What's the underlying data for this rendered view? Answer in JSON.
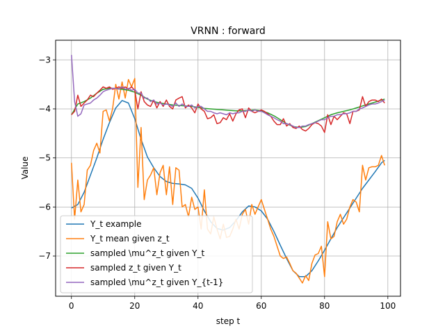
{
  "chart_data": {
    "type": "line",
    "title": "VRNN : forward",
    "xlabel": "step t",
    "ylabel": "Value",
    "xlim": [
      -5,
      104
    ],
    "ylim": [
      -7.82,
      -2.6
    ],
    "xticks": [
      0,
      20,
      40,
      60,
      80,
      100
    ],
    "yticks": [
      -7,
      -6,
      -5,
      -4,
      -3
    ],
    "ytick_labels": [
      "−7",
      "−6",
      "−5",
      "−4",
      "−3"
    ],
    "grid": true,
    "legend_position": "lower-left",
    "series": [
      {
        "name": "Y_t example",
        "color": "#1f77b4",
        "x": [
          0,
          2,
          4,
          6,
          8,
          10,
          12,
          14,
          16,
          18,
          20,
          22,
          24,
          26,
          28,
          30,
          32,
          34,
          36,
          38,
          40,
          42,
          44,
          46,
          48,
          50,
          52,
          54,
          56,
          58,
          60,
          62,
          64,
          66,
          68,
          70,
          72,
          74,
          76,
          78,
          80,
          82,
          84,
          86,
          88,
          90,
          92,
          94,
          96,
          98,
          99
        ],
        "y": [
          -6.02,
          -5.95,
          -5.7,
          -5.35,
          -5.0,
          -4.62,
          -4.28,
          -3.98,
          -3.83,
          -3.88,
          -4.2,
          -4.62,
          -4.98,
          -5.2,
          -5.38,
          -5.48,
          -5.52,
          -5.53,
          -5.55,
          -5.62,
          -5.82,
          -6.08,
          -6.3,
          -6.44,
          -6.47,
          -6.42,
          -6.28,
          -6.1,
          -5.98,
          -6.0,
          -6.08,
          -6.25,
          -6.5,
          -6.78,
          -7.05,
          -7.3,
          -7.42,
          -7.42,
          -7.3,
          -7.1,
          -6.88,
          -6.65,
          -6.42,
          -6.22,
          -6.02,
          -5.82,
          -5.62,
          -5.45,
          -5.28,
          -5.1,
          -5.05
        ]
      },
      {
        "name": "Y_t mean given z_t",
        "color": "#ff7f0e",
        "x": [
          0,
          1,
          2,
          3,
          4,
          5,
          6,
          7,
          8,
          9,
          10,
          11,
          12,
          13,
          14,
          15,
          16,
          17,
          18,
          19,
          20,
          21,
          22,
          23,
          24,
          25,
          26,
          27,
          28,
          29,
          30,
          31,
          32,
          33,
          34,
          35,
          36,
          37,
          38,
          39,
          40,
          41,
          42,
          43,
          44,
          45,
          46,
          47,
          48,
          49,
          50,
          51,
          52,
          53,
          54,
          55,
          56,
          57,
          58,
          59,
          60,
          61,
          62,
          63,
          64,
          65,
          66,
          67,
          68,
          69,
          70,
          71,
          72,
          73,
          74,
          75,
          76,
          77,
          78,
          79,
          80,
          81,
          82,
          83,
          84,
          85,
          86,
          87,
          88,
          89,
          90,
          91,
          92,
          93,
          94,
          95,
          96,
          97,
          98,
          99
        ],
        "y": [
          -5.1,
          -6.25,
          -5.45,
          -6.1,
          -5.95,
          -5.25,
          -5.15,
          -4.85,
          -4.7,
          -4.9,
          -4.05,
          -4.02,
          -4.25,
          -4.0,
          -3.5,
          -3.8,
          -3.45,
          -3.78,
          -3.4,
          -3.55,
          -3.38,
          -5.6,
          -4.38,
          -5.85,
          -5.45,
          -5.35,
          -5.2,
          -5.75,
          -5.3,
          -5.15,
          -5.75,
          -5.18,
          -5.95,
          -5.2,
          -5.25,
          -6.0,
          -5.95,
          -6.2,
          -5.8,
          -6.05,
          -6.0,
          -6.45,
          -5.65,
          -6.45,
          -6.55,
          -6.2,
          -6.45,
          -6.65,
          -6.35,
          -6.62,
          -6.6,
          -6.45,
          -6.25,
          -6.45,
          -6.15,
          -6.05,
          -6.35,
          -5.95,
          -6.15,
          -6.0,
          -5.85,
          -6.05,
          -6.25,
          -6.45,
          -6.6,
          -6.8,
          -7.0,
          -7.05,
          -7.02,
          -7.15,
          -7.3,
          -7.35,
          -7.45,
          -7.55,
          -7.4,
          -7.5,
          -7.15,
          -6.98,
          -6.95,
          -6.8,
          -7.42,
          -6.3,
          -6.65,
          -6.6,
          -6.3,
          -6.15,
          -6.35,
          -6.25,
          -6.0,
          -5.85,
          -5.9,
          -6.1,
          -5.15,
          -5.45,
          -5.2,
          -5.18,
          -5.18,
          -5.15,
          -4.95,
          -5.15
        ]
      },
      {
        "name": "sampled \\mu^z_t given Y_t",
        "color": "#2ca02c",
        "x": [
          0,
          2,
          4,
          6,
          8,
          10,
          12,
          14,
          16,
          18,
          20,
          22,
          24,
          26,
          28,
          30,
          32,
          34,
          36,
          38,
          40,
          42,
          44,
          46,
          48,
          50,
          52,
          54,
          56,
          58,
          60,
          62,
          64,
          66,
          68,
          70,
          72,
          74,
          76,
          78,
          80,
          82,
          84,
          86,
          88,
          90,
          92,
          94,
          96,
          98,
          99
        ],
        "y": [
          -4.12,
          -3.9,
          -3.85,
          -3.78,
          -3.68,
          -3.6,
          -3.58,
          -3.58,
          -3.6,
          -3.62,
          -3.66,
          -3.72,
          -3.8,
          -3.85,
          -3.88,
          -3.9,
          -3.92,
          -3.93,
          -3.94,
          -3.95,
          -3.97,
          -3.99,
          -4.0,
          -4.01,
          -4.02,
          -4.03,
          -4.04,
          -4.04,
          -4.03,
          -4.02,
          -4.04,
          -4.08,
          -4.14,
          -4.22,
          -4.3,
          -4.36,
          -4.38,
          -4.36,
          -4.3,
          -4.24,
          -4.18,
          -4.12,
          -4.08,
          -4.05,
          -4.02,
          -3.98,
          -3.94,
          -3.9,
          -3.86,
          -3.82,
          -3.8
        ]
      },
      {
        "name": "sampled z_t given Y_t",
        "color": "#d62728",
        "x": [
          0,
          1,
          2,
          3,
          4,
          5,
          6,
          7,
          8,
          9,
          10,
          11,
          12,
          13,
          14,
          15,
          16,
          17,
          18,
          19,
          20,
          21,
          22,
          23,
          24,
          25,
          26,
          27,
          28,
          29,
          30,
          31,
          32,
          33,
          34,
          35,
          36,
          37,
          38,
          39,
          40,
          41,
          42,
          43,
          44,
          45,
          46,
          47,
          48,
          49,
          50,
          51,
          52,
          53,
          54,
          55,
          56,
          57,
          58,
          59,
          60,
          61,
          62,
          63,
          64,
          65,
          66,
          67,
          68,
          69,
          70,
          71,
          72,
          73,
          74,
          75,
          76,
          77,
          78,
          79,
          80,
          81,
          82,
          83,
          84,
          85,
          86,
          87,
          88,
          89,
          90,
          91,
          92,
          93,
          94,
          95,
          96,
          97,
          98,
          99
        ],
        "y": [
          -4.12,
          -4.05,
          -3.72,
          -3.95,
          -3.88,
          -3.82,
          -3.72,
          -3.75,
          -3.68,
          -3.62,
          -3.55,
          -3.58,
          -3.55,
          -3.6,
          -3.58,
          -3.55,
          -3.58,
          -3.55,
          -3.6,
          -3.55,
          -3.62,
          -4.0,
          -3.65,
          -3.85,
          -3.92,
          -3.95,
          -3.82,
          -3.98,
          -3.85,
          -3.95,
          -3.82,
          -3.95,
          -4.0,
          -3.82,
          -3.78,
          -3.75,
          -3.98,
          -3.92,
          -3.98,
          -4.08,
          -3.9,
          -4.0,
          -4.05,
          -4.2,
          -4.18,
          -4.12,
          -4.3,
          -4.28,
          -4.18,
          -4.22,
          -4.1,
          -4.25,
          -4.1,
          -4.02,
          -4.0,
          -4.18,
          -3.98,
          -4.05,
          -4.08,
          -4.05,
          -4.02,
          -4.05,
          -4.1,
          -4.15,
          -4.25,
          -4.32,
          -4.32,
          -4.2,
          -4.35,
          -4.3,
          -4.38,
          -4.4,
          -4.35,
          -4.42,
          -4.45,
          -4.4,
          -4.32,
          -4.28,
          -4.3,
          -4.35,
          -4.48,
          -4.12,
          -4.32,
          -4.15,
          -4.22,
          -4.15,
          -4.08,
          -4.1,
          -4.3,
          -4.05,
          -4.05,
          -4.02,
          -3.75,
          -3.95,
          -3.85,
          -3.82,
          -3.82,
          -3.85,
          -3.8,
          -3.88
        ]
      },
      {
        "name": "sampled \\mu^z_t given Y_{t-1}",
        "color": "#9467bd",
        "x": [
          0,
          1,
          2,
          3,
          4,
          5,
          6,
          7,
          8,
          9,
          10,
          11,
          12,
          13,
          14,
          15,
          16,
          17,
          18,
          19,
          20,
          21,
          22,
          23,
          24,
          25,
          26,
          27,
          28,
          29,
          30,
          31,
          32,
          33,
          34,
          35,
          36,
          37,
          38,
          39,
          40,
          41,
          42,
          43,
          44,
          45,
          46,
          47,
          48,
          49,
          50,
          51,
          52,
          53,
          54,
          55,
          56,
          57,
          58,
          59,
          60,
          61,
          62,
          63,
          64,
          65,
          66,
          67,
          68,
          69,
          70,
          71,
          72,
          73,
          74,
          75,
          76,
          77,
          78,
          79,
          80,
          81,
          82,
          83,
          84,
          85,
          86,
          87,
          88,
          89,
          90,
          91,
          92,
          93,
          94,
          95,
          96,
          97,
          98,
          99
        ],
        "y": [
          -2.9,
          -3.85,
          -4.15,
          -4.1,
          -3.92,
          -3.9,
          -3.88,
          -3.82,
          -3.78,
          -3.72,
          -3.65,
          -3.62,
          -3.6,
          -3.58,
          -3.58,
          -3.6,
          -3.55,
          -3.6,
          -3.58,
          -3.62,
          -3.6,
          -3.68,
          -3.68,
          -3.78,
          -3.78,
          -3.85,
          -3.82,
          -3.9,
          -3.88,
          -3.92,
          -3.9,
          -3.92,
          -3.95,
          -3.88,
          -3.95,
          -3.9,
          -3.95,
          -3.95,
          -3.92,
          -3.98,
          -3.95,
          -3.95,
          -4.0,
          -4.05,
          -4.05,
          -4.08,
          -4.1,
          -4.08,
          -4.1,
          -4.12,
          -4.08,
          -4.1,
          -4.08,
          -4.08,
          -4.05,
          -4.05,
          -4.02,
          -4.05,
          -4.02,
          -4.05,
          -4.05,
          -4.08,
          -4.12,
          -4.15,
          -4.18,
          -4.22,
          -4.25,
          -4.3,
          -4.3,
          -4.32,
          -4.35,
          -4.38,
          -4.38,
          -4.35,
          -4.35,
          -4.32,
          -4.3,
          -4.28,
          -4.25,
          -4.22,
          -4.22,
          -4.18,
          -4.15,
          -4.15,
          -4.12,
          -4.12,
          -4.1,
          -4.1,
          -4.08,
          -4.05,
          -4.05,
          -4.0,
          -3.98,
          -3.95,
          -3.92,
          -3.9,
          -3.9,
          -3.88,
          -3.85,
          -3.82
        ]
      }
    ]
  }
}
